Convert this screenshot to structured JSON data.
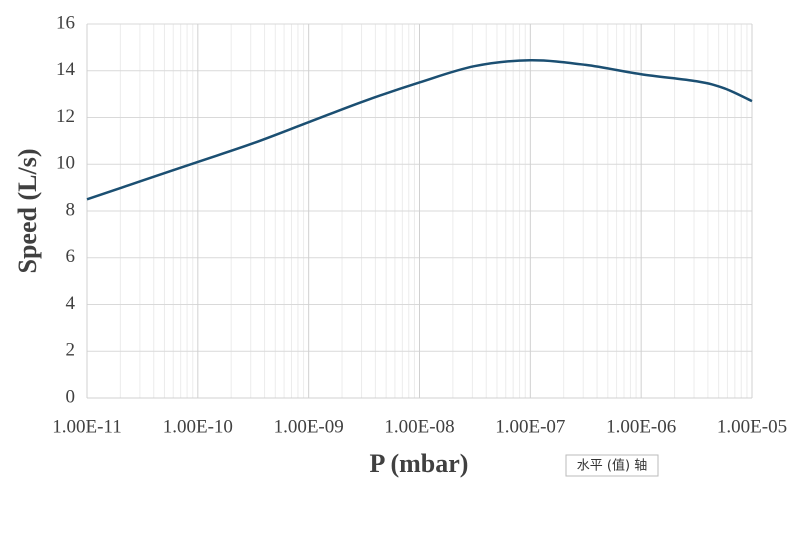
{
  "chart_data": {
    "type": "line",
    "y_label": "Speed (L/s)",
    "x_label": "P (mbar)",
    "annotation": "水平 (值) 轴",
    "x_log": true,
    "grid": true,
    "minor_grid": true,
    "x": [
      1e-11,
      3.1623e-11,
      1e-10,
      3.1623e-10,
      1e-09,
      3.1623e-09,
      1e-08,
      3.1623e-08,
      1e-07,
      3.1623e-07,
      1e-06,
      3.1623e-06,
      5.6234e-06,
      1e-05
    ],
    "series": [
      {
        "name": "Speed",
        "color": "#1b4f72",
        "values": [
          8.5,
          9.3,
          10.1,
          10.9,
          11.8,
          12.7,
          13.5,
          14.2,
          14.45,
          14.25,
          13.85,
          13.55,
          13.25,
          12.7
        ]
      }
    ],
    "xlim": [
      1e-11,
      1e-05
    ],
    "xticks": [
      {
        "value": 1e-11,
        "label": "1.00E-11"
      },
      {
        "value": 1e-10,
        "label": "1.00E-10"
      },
      {
        "value": 1e-09,
        "label": "1.00E-09"
      },
      {
        "value": 1e-08,
        "label": "1.00E-08"
      },
      {
        "value": 1e-07,
        "label": "1.00E-07"
      },
      {
        "value": 1e-06,
        "label": "1.00E-06"
      },
      {
        "value": 1e-05,
        "label": "1.00E-05"
      }
    ],
    "ylim": [
      0,
      16
    ],
    "yticks": [
      0,
      2,
      4,
      6,
      8,
      10,
      12,
      14,
      16
    ]
  }
}
